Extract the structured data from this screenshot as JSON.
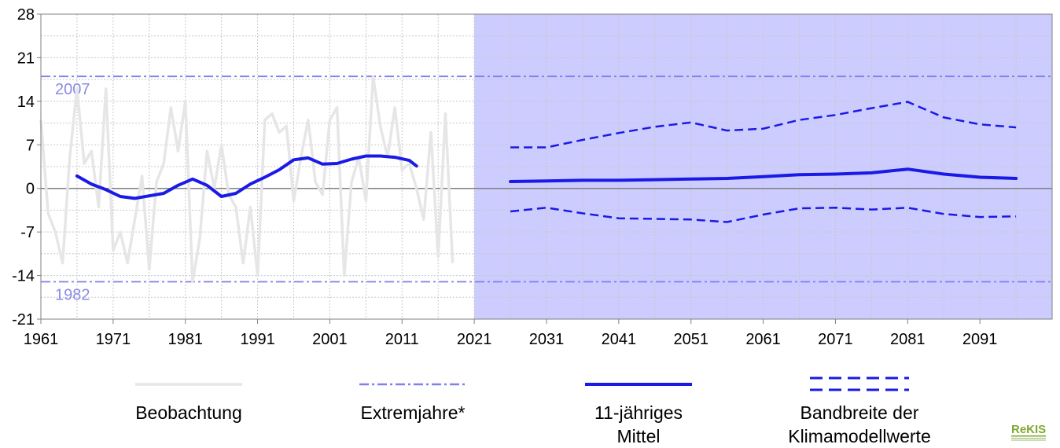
{
  "chart_data": {
    "type": "line",
    "xlim": [
      1961,
      2101
    ],
    "ylim": [
      -21,
      28
    ],
    "x_ticks": [
      1961,
      1971,
      1981,
      1991,
      2001,
      2011,
      2021,
      2031,
      2041,
      2051,
      2061,
      2071,
      2081,
      2091
    ],
    "y_ticks": [
      28,
      21,
      14,
      7,
      0,
      -7,
      -14,
      -21
    ],
    "projection_start": 2021,
    "grid": true,
    "colors": {
      "observation": "#e6e6e6",
      "extreme": "#8080ee",
      "mean": "#1a1ae6",
      "band": "#1a1ae6",
      "projection_area": "#ccccff",
      "logo": "#7fa832"
    },
    "extremes": [
      {
        "label": "2007",
        "value": 18
      },
      {
        "label": "1982",
        "value": -15
      }
    ],
    "series": [
      {
        "name": "Beobachtung",
        "style": "observation",
        "x": [
          1961,
          1962,
          1963,
          1964,
          1965,
          1966,
          1967,
          1968,
          1969,
          1970,
          1971,
          1972,
          1973,
          1974,
          1975,
          1976,
          1977,
          1978,
          1979,
          1980,
          1981,
          1982,
          1983,
          1984,
          1985,
          1986,
          1987,
          1988,
          1989,
          1990,
          1991,
          1992,
          1993,
          1994,
          1995,
          1996,
          1997,
          1998,
          1999,
          2000,
          2001,
          2002,
          2003,
          2004,
          2005,
          2006,
          2007,
          2008,
          2009,
          2010,
          2011,
          2012,
          2013,
          2014,
          2015,
          2016,
          2017,
          2018
        ],
        "y": [
          11,
          -4,
          -7,
          -12,
          5,
          16,
          4,
          6,
          -3,
          16,
          -10,
          -7,
          -12,
          -5,
          2,
          -13,
          1,
          4,
          13,
          6,
          14,
          -15,
          -8,
          6,
          0,
          7,
          -1,
          -3,
          -12,
          -3,
          -14,
          11,
          12,
          9,
          10,
          -2,
          5,
          11,
          1,
          -1,
          11,
          13,
          -14,
          1,
          5,
          -2,
          18,
          10,
          5,
          13,
          3,
          4,
          0,
          -5,
          9,
          -11,
          12,
          -12
        ]
      },
      {
        "name": "11-jähriges Mittel",
        "style": "mean",
        "x": [
          1966,
          1968,
          1970,
          1972,
          1974,
          1976,
          1978,
          1980,
          1982,
          1984,
          1986,
          1988,
          1990,
          1992,
          1994,
          1996,
          1998,
          2000,
          2002,
          2004,
          2006,
          2008,
          2010,
          2012,
          2013
        ],
        "y": [
          2,
          0.7,
          -0.2,
          -1.3,
          -1.6,
          -1.2,
          -0.8,
          0.5,
          1.5,
          0.5,
          -1.3,
          -0.8,
          0.7,
          1.8,
          3,
          4.6,
          4.9,
          3.9,
          4,
          4.7,
          5.2,
          5.2,
          5,
          4.5,
          3.6
        ]
      },
      {
        "name": "11-jähriges Mittel",
        "style": "mean",
        "x": [
          2026,
          2031,
          2036,
          2041,
          2046,
          2051,
          2056,
          2061,
          2066,
          2071,
          2076,
          2081,
          2086,
          2091,
          2096
        ],
        "y": [
          1.1,
          1.2,
          1.3,
          1.3,
          1.4,
          1.5,
          1.6,
          1.9,
          2.2,
          2.3,
          2.5,
          3.1,
          2.3,
          1.8,
          1.6
        ]
      },
      {
        "name": "Bandbreite der Klimamodellwerte",
        "style": "band",
        "x": [
          2026,
          2031,
          2036,
          2041,
          2046,
          2051,
          2056,
          2061,
          2066,
          2071,
          2076,
          2081,
          2086,
          2091,
          2096
        ],
        "y": [
          6.6,
          6.6,
          7.8,
          8.9,
          9.9,
          10.6,
          9.3,
          9.6,
          11,
          11.8,
          12.9,
          13.9,
          11.4,
          10.3,
          9.8
        ]
      },
      {
        "name": "Bandbreite der Klimamodellwerte",
        "style": "band",
        "x": [
          2026,
          2031,
          2036,
          2041,
          2046,
          2051,
          2056,
          2061,
          2066,
          2071,
          2076,
          2081,
          2086,
          2091,
          2096
        ],
        "y": [
          -3.7,
          -3.1,
          -4,
          -4.8,
          -4.9,
          -5,
          -5.4,
          -4.2,
          -3.2,
          -3.1,
          -3.4,
          -3.1,
          -4.1,
          -4.6,
          -4.5
        ]
      }
    ],
    "legend": [
      {
        "style": "observation",
        "label_lines": [
          "Beobachtung"
        ]
      },
      {
        "style": "extreme",
        "label_lines": [
          "Extremjahre*"
        ]
      },
      {
        "style": "mean",
        "label_lines": [
          "11-jähriges",
          "Mittel"
        ]
      },
      {
        "style": "band",
        "label_lines": [
          "Bandbreite der",
          "Klimamodellwerte"
        ]
      }
    ]
  },
  "logo": {
    "text": "ReKIS"
  }
}
